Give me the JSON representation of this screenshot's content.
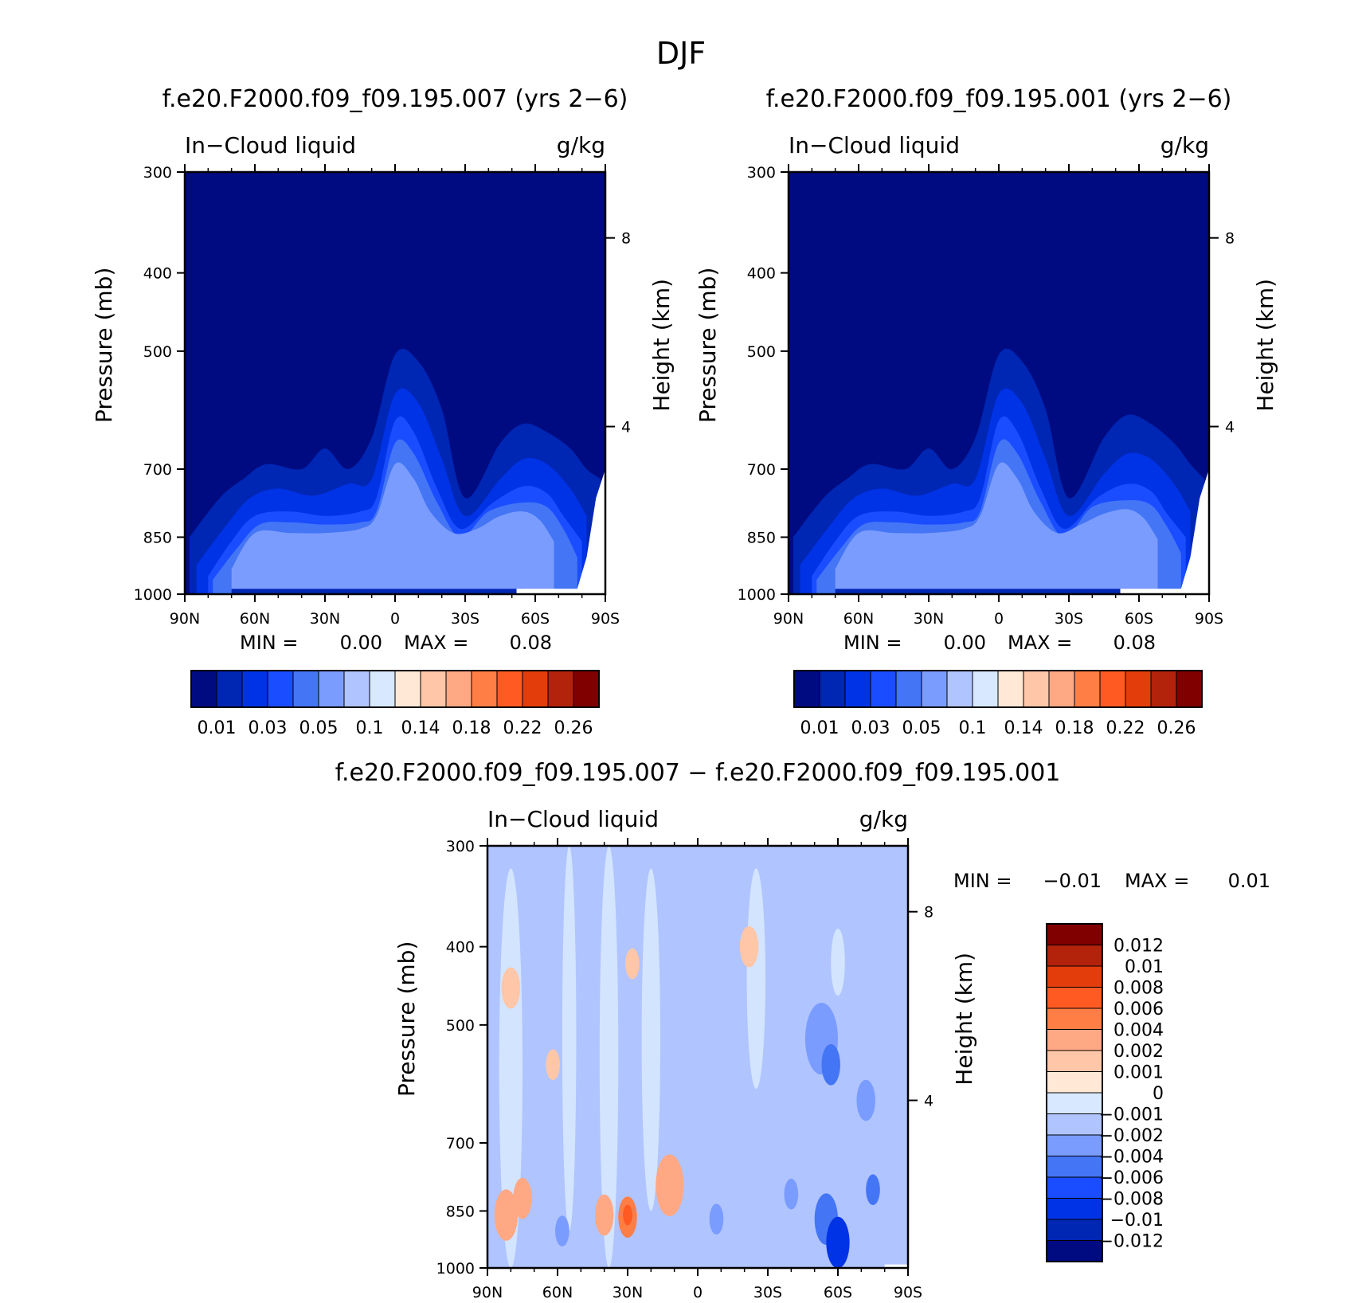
{
  "main_title": "DJF",
  "chart_data": [
    {
      "type": "heatmap",
      "panel": "top-left",
      "title": "f.e20.F2000.f09_f09.195.007 (yrs 2-6)",
      "left_string": "In-Cloud liquid",
      "right_string": "g/kg",
      "xlabel": "",
      "ylabel": "Pressure (mb)",
      "ylabel_right": "Height (km)",
      "x_ticks": [
        "90N",
        "60N",
        "30N",
        "0",
        "30S",
        "60S",
        "90S"
      ],
      "y_ticks": [
        "300",
        "400",
        "500",
        "700",
        "850",
        "1000"
      ],
      "y_right_ticks": [
        "8",
        "4"
      ],
      "ylim": [
        1000,
        300
      ],
      "y_scale": "log",
      "stats": {
        "min_label": "MIN =",
        "min": "0.00",
        "max_label": "MAX =",
        "max": "0.08"
      },
      "colorbar": {
        "orientation": "horizontal",
        "levels": [
          "0.01",
          "0.03",
          "0.05",
          "0.1",
          "0.14",
          "0.18",
          "0.22",
          "0.26"
        ],
        "colors": [
          "#000b82",
          "#0026b4",
          "#0033e6",
          "#1a4dff",
          "#4475f5",
          "#7a9cff",
          "#b0c4ff",
          "#d7e8ff",
          "#ffe8d6",
          "#ffc6a8",
          "#ffa883",
          "#ff7e45",
          "#ff5a22",
          "#e43d0c",
          "#b3220b",
          "#800000"
        ]
      },
      "regions": [
        {
          "level": 1,
          "x": [
            -88,
            -75,
            -65,
            -55,
            -40,
            -30,
            -20,
            -10,
            0,
            10,
            20,
            30,
            45,
            55,
            65,
            75,
            82,
            88
          ],
          "top": [
            850,
            760,
            720,
            690,
            700,
            660,
            700,
            640,
            505,
            515,
            590,
            760,
            650,
            615,
            630,
            660,
            700,
            720
          ]
        },
        {
          "level": 2,
          "x": [
            -85,
            -72,
            -62,
            -50,
            -35,
            -20,
            -10,
            0,
            10,
            20,
            30,
            45,
            55,
            65,
            75,
            82
          ],
          "top": [
            920,
            820,
            760,
            740,
            755,
            730,
            720,
            565,
            580,
            680,
            800,
            720,
            680,
            690,
            740,
            800
          ]
        },
        {
          "level": 3,
          "x": [
            -80,
            -70,
            -60,
            -45,
            -30,
            -15,
            -8,
            0,
            8,
            18,
            28,
            42,
            55,
            65,
            72,
            80
          ],
          "top": [
            950,
            860,
            800,
            790,
            800,
            790,
            760,
            610,
            630,
            740,
            830,
            770,
            735,
            750,
            800,
            860
          ]
        },
        {
          "level": 4,
          "x": [
            -78,
            -68,
            -58,
            -45,
            -30,
            -15,
            -8,
            0,
            8,
            18,
            28,
            40,
            55,
            65,
            72,
            78
          ],
          "top": [
            960,
            880,
            820,
            815,
            820,
            815,
            790,
            650,
            670,
            770,
            850,
            790,
            770,
            780,
            830,
            900
          ]
        },
        {
          "level": 5,
          "x": [
            -70,
            -60,
            -45,
            -30,
            -15,
            -8,
            0,
            8,
            15,
            25,
            35,
            45,
            55,
            62,
            68
          ],
          "top": [
            930,
            840,
            840,
            840,
            830,
            800,
            690,
            720,
            790,
            840,
            830,
            800,
            790,
            810,
            860
          ]
        }
      ]
    },
    {
      "type": "heatmap",
      "panel": "top-right",
      "title": "f.e20.F2000.f09_f09.195.001 (yrs 2-6)",
      "left_string": "In-Cloud liquid",
      "right_string": "g/kg",
      "xlabel": "",
      "ylabel": "Pressure (mb)",
      "ylabel_right": "Height (km)",
      "x_ticks": [
        "90N",
        "60N",
        "30N",
        "0",
        "30S",
        "60S",
        "90S"
      ],
      "y_ticks": [
        "300",
        "400",
        "500",
        "700",
        "850",
        "1000"
      ],
      "y_right_ticks": [
        "8",
        "4"
      ],
      "ylim": [
        1000,
        300
      ],
      "y_scale": "log",
      "stats": {
        "min_label": "MIN =",
        "min": "0.00",
        "max_label": "MAX =",
        "max": "0.08"
      },
      "colorbar": {
        "orientation": "horizontal",
        "levels": [
          "0.01",
          "0.03",
          "0.05",
          "0.1",
          "0.14",
          "0.18",
          "0.22",
          "0.26"
        ],
        "colors": [
          "#000b82",
          "#0026b4",
          "#0033e6",
          "#1a4dff",
          "#4475f5",
          "#7a9cff",
          "#b0c4ff",
          "#d7e8ff",
          "#ffe8d6",
          "#ffc6a8",
          "#ffa883",
          "#ff7e45",
          "#ff5a22",
          "#e43d0c",
          "#b3220b",
          "#800000"
        ]
      },
      "regions": [
        {
          "level": 1,
          "x": [
            -88,
            -75,
            -65,
            -55,
            -40,
            -30,
            -20,
            -10,
            0,
            10,
            20,
            30,
            45,
            55,
            65,
            75,
            82,
            88
          ],
          "top": [
            850,
            760,
            720,
            690,
            700,
            660,
            700,
            640,
            505,
            515,
            590,
            760,
            640,
            600,
            615,
            650,
            690,
            720
          ]
        },
        {
          "level": 2,
          "x": [
            -85,
            -72,
            -62,
            -50,
            -35,
            -20,
            -10,
            0,
            10,
            20,
            30,
            45,
            55,
            65,
            75,
            82
          ],
          "top": [
            920,
            820,
            760,
            740,
            755,
            730,
            720,
            565,
            580,
            680,
            800,
            710,
            670,
            680,
            730,
            790
          ]
        },
        {
          "level": 3,
          "x": [
            -80,
            -70,
            -60,
            -45,
            -30,
            -15,
            -8,
            0,
            8,
            18,
            28,
            42,
            55,
            65,
            72,
            80
          ],
          "top": [
            950,
            860,
            800,
            790,
            800,
            790,
            760,
            610,
            630,
            740,
            830,
            760,
            730,
            745,
            795,
            850
          ]
        },
        {
          "level": 4,
          "x": [
            -78,
            -68,
            -58,
            -45,
            -30,
            -15,
            -8,
            0,
            8,
            18,
            28,
            40,
            55,
            65,
            72,
            78
          ],
          "top": [
            960,
            880,
            820,
            815,
            820,
            815,
            790,
            650,
            670,
            770,
            850,
            780,
            765,
            775,
            825,
            890
          ]
        },
        {
          "level": 5,
          "x": [
            -70,
            -60,
            -45,
            -30,
            -15,
            -8,
            0,
            8,
            15,
            25,
            35,
            45,
            55,
            62,
            68
          ],
          "top": [
            930,
            840,
            840,
            840,
            830,
            800,
            690,
            720,
            790,
            840,
            820,
            795,
            785,
            805,
            855
          ]
        }
      ]
    },
    {
      "type": "heatmap",
      "panel": "bottom-difference",
      "title": "f.e20.F2000.f09_f09.195.007 - f.e20.F2000.f09_f09.195.001",
      "left_string": "In-Cloud liquid",
      "right_string": "g/kg",
      "xlabel": "",
      "ylabel": "Pressure (mb)",
      "ylabel_right": "Height (km)",
      "x_ticks": [
        "90N",
        "60N",
        "30N",
        "0",
        "30S",
        "60S",
        "90S"
      ],
      "y_ticks": [
        "300",
        "400",
        "500",
        "700",
        "850",
        "1000"
      ],
      "y_right_ticks": [
        "8",
        "4"
      ],
      "ylim": [
        1000,
        300
      ],
      "y_scale": "log",
      "stats": {
        "min_label": "MIN =",
        "min": "-0.01",
        "max_label": "MAX =",
        "max": "0.01"
      },
      "colorbar": {
        "orientation": "vertical",
        "levels": [
          "0.012",
          "0.01",
          "0.008",
          "0.006",
          "0.004",
          "0.002",
          "0.001",
          "0",
          "-0.001",
          "-0.002",
          "-0.004",
          "-0.006",
          "-0.008",
          "-0.01",
          "-0.012"
        ],
        "colors": [
          "#800000",
          "#b3220b",
          "#e43d0c",
          "#ff5a22",
          "#ff7e45",
          "#ffa883",
          "#ffc6a8",
          "#ffe8d6",
          "#d7e8ff",
          "#b0c4ff",
          "#7a9cff",
          "#4475f5",
          "#1a4dff",
          "#0033e6",
          "#0026b4",
          "#000b82"
        ]
      },
      "background_level": "-0.001",
      "blobs": [
        {
          "lat": -82,
          "p": 860,
          "rx": 5,
          "level": "0.002"
        },
        {
          "lat": -75,
          "p": 820,
          "rx": 4,
          "level": "0.002"
        },
        {
          "lat": -40,
          "p": 860,
          "rx": 4,
          "level": "0.002"
        },
        {
          "lat": -30,
          "p": 865,
          "rx": 4,
          "level": "0.004"
        },
        {
          "lat": -30,
          "p": 860,
          "rx": 2,
          "level": "0.006"
        },
        {
          "lat": -12,
          "p": 790,
          "rx": 6,
          "level": "0.002"
        },
        {
          "lat": -28,
          "p": 420,
          "rx": 3,
          "level": "0.001"
        },
        {
          "lat": -80,
          "p": 450,
          "rx": 4,
          "level": "0.001"
        },
        {
          "lat": -62,
          "p": 560,
          "rx": 3,
          "level": "0.001"
        },
        {
          "lat": 22,
          "p": 400,
          "rx": 4,
          "level": "0.001"
        },
        {
          "lat": 53,
          "p": 520,
          "rx": 7,
          "level": "-0.002"
        },
        {
          "lat": 57,
          "p": 560,
          "rx": 4,
          "level": "-0.004"
        },
        {
          "lat": 40,
          "p": 810,
          "rx": 3,
          "level": "-0.002"
        },
        {
          "lat": 55,
          "p": 870,
          "rx": 5,
          "level": "-0.004"
        },
        {
          "lat": 60,
          "p": 930,
          "rx": 5,
          "level": "-0.008"
        },
        {
          "lat": 72,
          "p": 620,
          "rx": 4,
          "level": "-0.002"
        },
        {
          "lat": 75,
          "p": 800,
          "rx": 3,
          "level": "-0.004"
        },
        {
          "lat": 8,
          "p": 870,
          "rx": 3,
          "level": "-0.002"
        },
        {
          "lat": -58,
          "p": 900,
          "rx": 3,
          "level": "-0.002"
        }
      ]
    }
  ]
}
